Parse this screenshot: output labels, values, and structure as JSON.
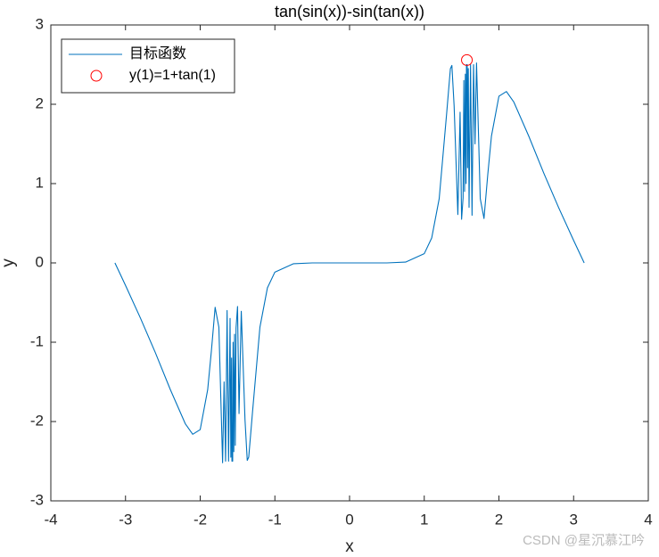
{
  "chart_data": {
    "type": "line",
    "title": "tan(sin(x))-sin(tan(x))",
    "x_label": "x",
    "y_label": "y",
    "xlim": [
      -4,
      4
    ],
    "xticks": [
      -4,
      -3,
      -2,
      -1,
      0,
      1,
      2,
      3,
      4
    ],
    "ylim": [
      -3,
      3
    ],
    "yticks": [
      -3,
      -2,
      -1,
      0,
      1,
      2,
      3
    ],
    "legend": "northwest",
    "box": true,
    "series": [
      {
        "name": "目标函数",
        "color": "#0072bd",
        "marker": "none",
        "x": [
          -3.1416,
          -3,
          -2.8,
          -2.6,
          -2.4,
          -2.2,
          -2.1,
          -2,
          -1.9,
          -1.85,
          -1.8,
          -1.75,
          -1.7,
          -1.68,
          -1.66,
          -1.64,
          -1.62,
          -1.6,
          -1.59,
          -1.58,
          -1.575,
          -1.565,
          -1.56,
          -1.55,
          -1.54,
          -1.53,
          -1.52,
          -1.5,
          -1.48,
          -1.45,
          -1.4,
          -1.37,
          -1.35,
          -1.3,
          -1.2,
          -1.1,
          -1,
          -0.75,
          -0.5,
          -0.25,
          0,
          0.25,
          0.5,
          0.75,
          1,
          1.1,
          1.2,
          1.3,
          1.35,
          1.37,
          1.4,
          1.45,
          1.48,
          1.5,
          1.52,
          1.53,
          1.54,
          1.55,
          1.56,
          1.565,
          1.575,
          1.58,
          1.59,
          1.6,
          1.62,
          1.64,
          1.66,
          1.68,
          1.7,
          1.75,
          1.8,
          1.85,
          1.9,
          2,
          2.1,
          2.2,
          2.4,
          2.6,
          2.8,
          3,
          3.1416
        ],
        "values": [
          0,
          -0.284,
          -0.696,
          -1.133,
          -1.597,
          -2.027,
          -2.161,
          -2.102,
          -1.6,
          -1.108,
          -0.56,
          -0.81,
          -2.52,
          -1.5,
          -2.5,
          -0.6,
          -2.5,
          -0.7,
          -2.45,
          -1.2,
          -2.5,
          -2.5,
          -1.0,
          -2.38,
          -0.9,
          -2.3,
          -0.82,
          -0.55,
          -1.9,
          -0.61,
          -1.979,
          -2.49,
          -2.448,
          -1.886,
          -0.809,
          -0.315,
          -0.116,
          -0.01,
          0,
          0,
          0,
          0,
          0,
          0.01,
          0.116,
          0.315,
          0.809,
          1.886,
          2.448,
          2.49,
          1.979,
          0.61,
          1.9,
          0.55,
          0.82,
          2.3,
          0.9,
          2.38,
          1.0,
          2.5,
          2.5,
          1.2,
          2.45,
          0.7,
          2.5,
          0.6,
          2.5,
          1.5,
          2.52,
          0.81,
          0.56,
          1.108,
          1.6,
          2.102,
          2.161,
          2.027,
          1.597,
          1.133,
          0.696,
          0.284,
          0
        ]
      },
      {
        "name": "y(1)=1+tan(1)",
        "color": "#ff0000",
        "marker": "circle",
        "x": [
          1.5708
        ],
        "values": [
          2.5574
        ]
      }
    ]
  },
  "watermark": "CSDN @星沉慕江吟"
}
